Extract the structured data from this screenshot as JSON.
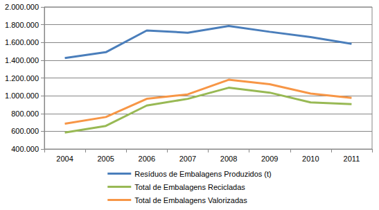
{
  "chart_data": {
    "type": "line",
    "categories": [
      "2004",
      "2005",
      "2006",
      "2007",
      "2008",
      "2009",
      "2010",
      "2011"
    ],
    "series": [
      {
        "name": "Resíduos de Embalagens Produzidos (t)",
        "color": "#4a7ebb",
        "values": [
          1425000,
          1490000,
          1735000,
          1710000,
          1785000,
          1720000,
          1660000,
          1585000
        ]
      },
      {
        "name": "Total de Embalagens Recicladas",
        "color": "#98b954",
        "values": [
          585000,
          660000,
          890000,
          965000,
          1090000,
          1035000,
          925000,
          905000
        ]
      },
      {
        "name": "Total de Embalagens Valorizadas",
        "color": "#f79646",
        "values": [
          685000,
          760000,
          965000,
          1015000,
          1180000,
          1130000,
          1025000,
          975000
        ]
      }
    ],
    "ylim": [
      400000,
      2000000
    ],
    "yticks": [
      {
        "value": 400000,
        "label": "400.000"
      },
      {
        "value": 600000,
        "label": "600.000"
      },
      {
        "value": 800000,
        "label": "800.000"
      },
      {
        "value": 1000000,
        "label": "1.000.000"
      },
      {
        "value": 1200000,
        "label": "1.200.000"
      },
      {
        "value": 1400000,
        "label": "1.400.000"
      },
      {
        "value": 1600000,
        "label": "1.600.000"
      },
      {
        "value": 1800000,
        "label": "1.800.000"
      },
      {
        "value": 2000000,
        "label": "2.000.000"
      }
    ],
    "grid": true,
    "legend": "bottom"
  }
}
